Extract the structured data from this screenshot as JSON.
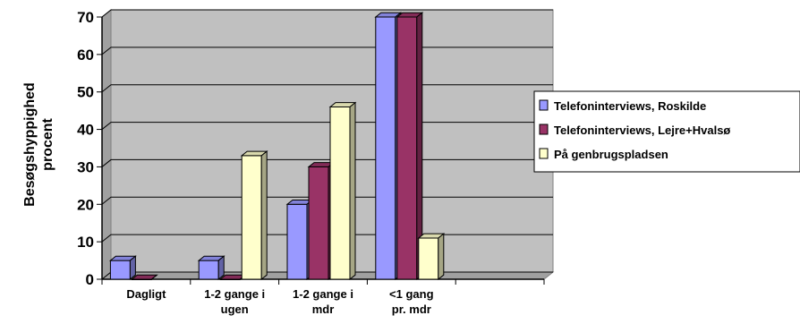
{
  "chart_data": {
    "type": "bar",
    "title": "",
    "xlabel": "",
    "ylabel_lines": [
      "Besøgshyppighed",
      "procent"
    ],
    "categories": [
      [
        "Dagligt"
      ],
      [
        "1-2 gange i",
        "ugen"
      ],
      [
        "1-2 gange i",
        "mdr"
      ],
      [
        "<1 gang",
        "pr. mdr"
      ],
      [
        ""
      ]
    ],
    "ylim": [
      0,
      70
    ],
    "yticks": [
      "0",
      "10",
      "20",
      "30",
      "40",
      "50",
      "60",
      "70"
    ],
    "grid": true,
    "three_d": true,
    "legend_position": "right",
    "series": [
      {
        "name": "Telefoninterviews, Roskilde",
        "color": "#9999ff",
        "values": [
          5,
          5,
          20,
          70,
          null
        ]
      },
      {
        "name": "Telefoninterviews, Lejre+Hvalsø",
        "color": "#993366",
        "values": [
          0,
          0,
          30,
          70,
          null
        ]
      },
      {
        "name": "På genbrugspladsen",
        "color": "#ffffcc",
        "values": [
          null,
          33,
          46,
          11,
          null
        ]
      }
    ],
    "plot_background": "#c0c0c0"
  }
}
